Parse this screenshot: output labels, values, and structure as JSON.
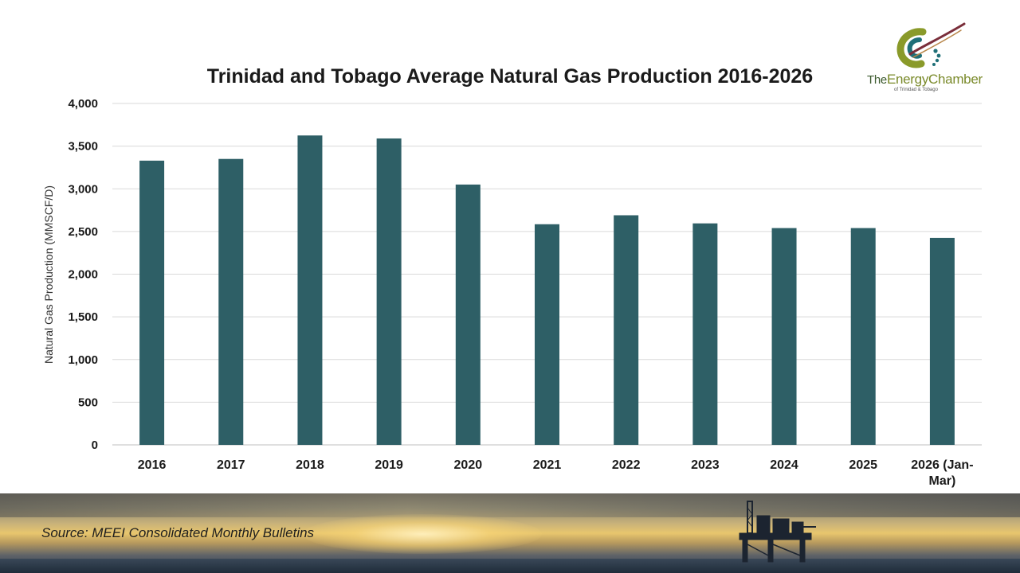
{
  "chart_data": {
    "type": "bar",
    "title": "Trinidad and Tobago Average Natural Gas Production 2016-2026",
    "ylabel": "Natural Gas Production (MMSCF/D)",
    "xlabel": "",
    "categories": [
      "2016",
      "2017",
      "2018",
      "2019",
      "2020",
      "2021",
      "2022",
      "2023",
      "2024",
      "2025",
      "2026 (Jan-Mar)"
    ],
    "category_lines": [
      [
        "2016"
      ],
      [
        "2017"
      ],
      [
        "2018"
      ],
      [
        "2019"
      ],
      [
        "2020"
      ],
      [
        "2021"
      ],
      [
        "2022"
      ],
      [
        "2023"
      ],
      [
        "2024"
      ],
      [
        "2025"
      ],
      [
        "2026 (Jan-",
        "Mar)"
      ]
    ],
    "values": [
      3330,
      3350,
      3625,
      3590,
      3050,
      2585,
      2690,
      2595,
      2540,
      2540,
      2425
    ],
    "ylim": [
      0,
      4000
    ],
    "yticks": [
      0,
      500,
      1000,
      1500,
      2000,
      2500,
      3000,
      3500,
      4000
    ],
    "ytick_labels": [
      "0",
      "500",
      "1,000",
      "1,500",
      "2,000",
      "2,500",
      "3,000",
      "3,500",
      "4,000"
    ],
    "grid": true,
    "legend": "none",
    "bar_color": "#2e5f66"
  },
  "logo": {
    "prefix": "The",
    "word1": "Energy",
    "word2": "Chamber",
    "subtitle": "of Trinidad & Tobago",
    "colors": {
      "olive": "#8a9a2a",
      "teal": "#1f6f78",
      "maroon": "#7a2e3a"
    }
  },
  "footer": {
    "source": "Source: MEEI Consolidated Monthly Bulletins"
  }
}
